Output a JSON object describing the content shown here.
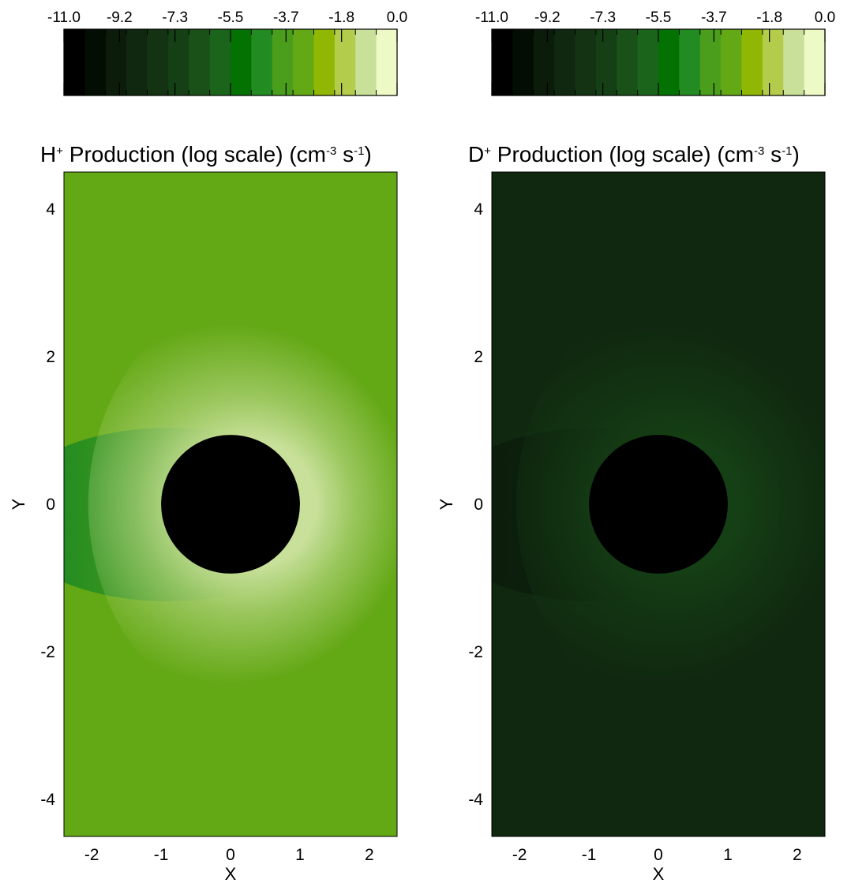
{
  "chart_data": [
    {
      "type": "heatmap",
      "title": "H⁺ Production (log scale) (cm⁻³ s⁻¹)",
      "title_parts": {
        "species": "H",
        "species_charge": "+",
        "main": " Production (log scale) (cm",
        "cm_exp": "-3",
        "s_unit": " s",
        "s_exp": "-1",
        "close": ")"
      },
      "xlabel": "X",
      "ylabel": "Y",
      "xlim": [
        -2.4,
        2.4
      ],
      "ylim": [
        -4.5,
        4.5
      ],
      "xticks": [
        -2,
        -1,
        0,
        1,
        2
      ],
      "xtick_labels": [
        "-2",
        "-1",
        "0",
        "1",
        "2"
      ],
      "yticks": [
        -4,
        -2,
        0,
        2,
        4
      ],
      "ytick_labels": [
        "-4",
        "-2",
        "0",
        "2",
        "4"
      ],
      "planet_radius": 1.0,
      "background_level": -3.4,
      "plume_level": -1.0,
      "wake_level": -4.4,
      "colorbar": {
        "range": [
          -11.0,
          0.0
        ],
        "n_levels": 16,
        "tick_labels": [
          "-11.0",
          "-9.2",
          "-7.3",
          "-5.5",
          "-3.7",
          "-1.8",
          "0.0"
        ],
        "colors": [
          "#000000",
          "#030d03",
          "#0b1c0b",
          "#102810",
          "#133313",
          "#153f15",
          "#195119",
          "#1b641b",
          "#037203",
          "#228b22",
          "#4b9e1b",
          "#63a815",
          "#90b703",
          "#b4cc4b",
          "#c8e099",
          "#eefac5"
        ]
      }
    },
    {
      "type": "heatmap",
      "title": "D⁺ Production (log scale) (cm⁻³ s⁻¹)",
      "title_parts": {
        "species": "D",
        "species_charge": "+",
        "main": " Production (log scale) (cm",
        "cm_exp": "-3",
        "s_unit": " s",
        "s_exp": "-1",
        "close": ")"
      },
      "xlabel": "X",
      "ylabel": "Y",
      "xlim": [
        -2.4,
        2.4
      ],
      "ylim": [
        -4.5,
        4.5
      ],
      "xticks": [
        -2,
        -1,
        0,
        1,
        2
      ],
      "xtick_labels": [
        "-2",
        "-1",
        "0",
        "1",
        "2"
      ],
      "yticks": [
        -4,
        -2,
        0,
        2,
        4
      ],
      "ytick_labels": [
        "-4",
        "-2",
        "0",
        "2",
        "4"
      ],
      "planet_radius": 1.0,
      "background_level": -8.6,
      "plume_level": -7.0,
      "wake_level": -9.3,
      "colorbar": {
        "range": [
          -11.0,
          0.0
        ],
        "n_levels": 16,
        "tick_labels": [
          "-11.0",
          "-9.2",
          "-7.3",
          "-5.5",
          "-3.7",
          "-1.8",
          "0.0"
        ],
        "colors": [
          "#000000",
          "#030d03",
          "#0b1c0b",
          "#102810",
          "#133313",
          "#153f15",
          "#195119",
          "#1b641b",
          "#037203",
          "#228b22",
          "#4b9e1b",
          "#63a815",
          "#90b703",
          "#b4cc4b",
          "#c8e099",
          "#eefac5"
        ]
      }
    }
  ]
}
